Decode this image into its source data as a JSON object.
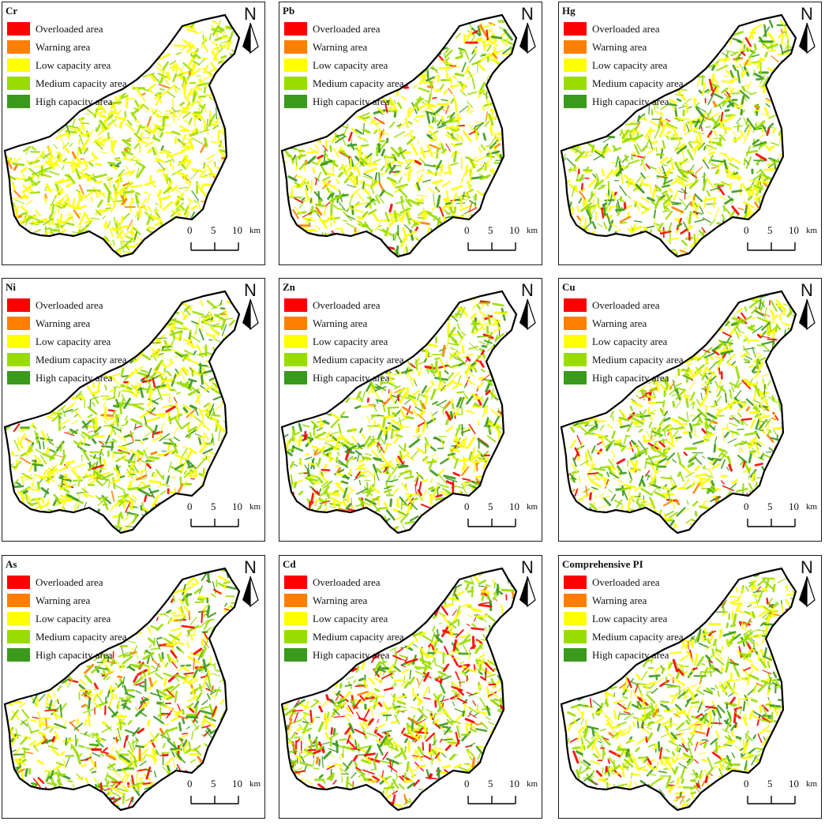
{
  "legend_colors": [
    "#ff0000",
    "#ff7f00",
    "#ffff00",
    "#99dd00",
    "#3a9a1c"
  ],
  "north_label": "N",
  "scale": {
    "ticks": [
      "0",
      "5",
      "10"
    ],
    "unit": "km"
  },
  "panels": [
    {
      "title": "Cr",
      "legend": [
        "Overloaded area",
        "Warning area",
        "Low capacity area",
        "Medium capacity area",
        "High capacity area"
      ]
    },
    {
      "title": "Pb",
      "legend": [
        "Overloaded area",
        "Warning area",
        "Low capacity area",
        "Medium capacity area",
        "High capacity area"
      ]
    },
    {
      "title": "Hg",
      "legend": [
        "Overloaded area",
        "Warning area",
        "Low capacity area",
        "Medium capacity area",
        "High capacity area"
      ]
    },
    {
      "title": "Ni",
      "legend": [
        "Overloaded area",
        "Warning area",
        "Low capacity area",
        "Medium capacity area",
        "High capacity area"
      ]
    },
    {
      "title": "Zn",
      "legend": [
        "Overloaded area",
        "Warning area",
        "Low capacity area",
        "Medium capacity area",
        "High capacity area"
      ]
    },
    {
      "title": "Cu",
      "legend": [
        "Overloaded area",
        "Warning area",
        "Low capacity area",
        "Medium capacity area",
        "High capacity area"
      ]
    },
    {
      "title": "As",
      "legend": [
        "Overloaded area",
        "Warning area",
        "Low capacity area",
        "Medium capacity area",
        "High capacity area"
      ]
    },
    {
      "title": "Cd",
      "legend": [
        "Overloaded area",
        "Warning area",
        "Low capacity area",
        "Medium capacity area",
        "High capacity area"
      ]
    },
    {
      "title": "Comprehensive PI",
      "legend": [
        "Overloaded area",
        "Warning area",
        "Low capacity area",
        "Medium capacity area",
        "High capacity area"
      ]
    }
  ]
}
